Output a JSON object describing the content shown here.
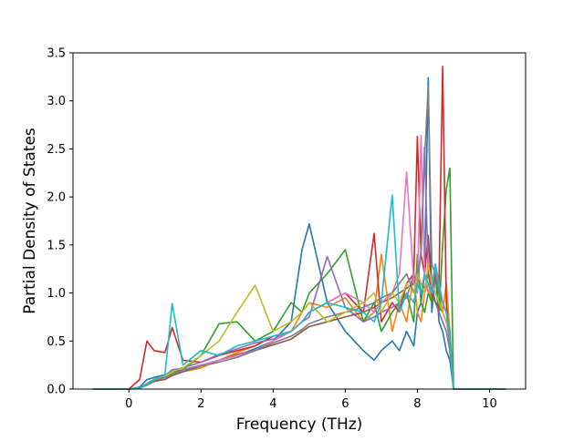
{
  "chart_data": {
    "type": "line",
    "title": "",
    "xlabel": "Frequency (THz)",
    "ylabel": "Partial Density of States",
    "xlim": [
      -1.55,
      11.0
    ],
    "ylim": [
      0.0,
      3.5
    ],
    "xticks": [
      0,
      2,
      4,
      6,
      8,
      10
    ],
    "yticks": [
      0.0,
      0.5,
      1.0,
      1.5,
      2.0,
      2.5,
      3.0,
      3.5
    ],
    "xtick_labels": [
      "0",
      "2",
      "4",
      "6",
      "8",
      "10"
    ],
    "ytick_labels": [
      "0.0",
      "0.5",
      "1.0",
      "1.5",
      "2.0",
      "2.5",
      "3.0",
      "3.5"
    ],
    "grid": false,
    "legend": "none",
    "palette": [
      "#1f77b4",
      "#ff7f0e",
      "#2ca02c",
      "#d62728",
      "#9467bd",
      "#8c564b",
      "#e377c2",
      "#7f7f7f",
      "#bcbd22",
      "#17becf"
    ],
    "x": [
      -1.0,
      -0.5,
      0.0,
      0.3,
      0.5,
      0.7,
      1.0,
      1.2,
      1.5,
      2.0,
      2.5,
      3.0,
      3.5,
      4.0,
      4.5,
      4.8,
      5.0,
      5.5,
      6.0,
      6.5,
      6.8,
      7.0,
      7.3,
      7.5,
      7.7,
      7.9,
      8.0,
      8.1,
      8.2,
      8.3,
      8.4,
      8.5,
      8.6,
      8.7,
      8.8,
      8.9,
      9.0,
      9.5,
      10.0,
      10.45
    ],
    "series": [
      {
        "values": [
          0,
          0,
          0,
          0.02,
          0.1,
          0.12,
          0.15,
          0.18,
          0.2,
          0.25,
          0.3,
          0.35,
          0.42,
          0.5,
          0.7,
          1.45,
          1.72,
          0.9,
          0.6,
          0.4,
          0.3,
          0.4,
          0.5,
          0.4,
          0.6,
          0.45,
          0.8,
          0.9,
          1.2,
          3.24,
          0.8,
          1.2,
          0.7,
          0.6,
          0.4,
          0.3,
          0,
          0,
          0,
          0
        ]
      },
      {
        "values": [
          0,
          0,
          0,
          0.01,
          0.05,
          0.1,
          0.12,
          0.15,
          0.18,
          0.22,
          0.3,
          0.38,
          0.45,
          0.55,
          0.6,
          0.8,
          0.9,
          0.85,
          0.95,
          0.7,
          0.8,
          1.4,
          0.6,
          0.9,
          0.7,
          1.2,
          0.8,
          0.7,
          1.0,
          1.1,
          0.9,
          1.2,
          1.0,
          0.8,
          1.1,
          0.6,
          0,
          0,
          0,
          0
        ]
      },
      {
        "values": [
          0,
          0,
          0,
          0.01,
          0.04,
          0.08,
          0.12,
          0.16,
          0.2,
          0.35,
          0.68,
          0.7,
          0.5,
          0.6,
          0.9,
          0.8,
          1.0,
          1.2,
          1.45,
          0.7,
          0.9,
          0.6,
          0.8,
          0.9,
          1.0,
          0.7,
          1.4,
          0.9,
          0.8,
          1.0,
          0.9,
          1.3,
          0.8,
          1.5,
          2.08,
          2.3,
          0,
          0,
          0,
          0
        ]
      },
      {
        "values": [
          0,
          0,
          0,
          0.1,
          0.5,
          0.4,
          0.38,
          0.64,
          0.3,
          0.28,
          0.35,
          0.4,
          0.45,
          0.55,
          0.6,
          0.7,
          0.8,
          0.9,
          1.0,
          0.8,
          1.62,
          0.7,
          0.9,
          0.8,
          1.1,
          1.2,
          2.63,
          1.4,
          1.2,
          1.6,
          1.0,
          1.2,
          1.1,
          3.36,
          0.9,
          0.4,
          0,
          0,
          0,
          0
        ]
      },
      {
        "values": [
          0,
          0,
          0,
          0.01,
          0.06,
          0.1,
          0.14,
          0.2,
          0.22,
          0.28,
          0.36,
          0.42,
          0.48,
          0.52,
          0.6,
          0.7,
          0.75,
          1.38,
          0.85,
          0.7,
          0.75,
          0.8,
          0.85,
          0.9,
          0.95,
          1.2,
          1.05,
          1.45,
          2.52,
          1.2,
          1.1,
          0.9,
          0.8,
          0.7,
          0.6,
          0.4,
          0,
          0,
          0,
          0
        ]
      },
      {
        "values": [
          0,
          0,
          0,
          0.01,
          0.05,
          0.08,
          0.1,
          0.14,
          0.18,
          0.24,
          0.3,
          0.36,
          0.4,
          0.46,
          0.52,
          0.6,
          0.65,
          0.7,
          0.75,
          0.8,
          0.85,
          0.9,
          0.95,
          1.0,
          1.05,
          1.1,
          1.15,
          1.1,
          1.05,
          1.2,
          1.0,
          0.9,
          0.85,
          0.8,
          0.7,
          0.5,
          0,
          0,
          0,
          0
        ]
      },
      {
        "values": [
          0,
          0,
          0,
          0.01,
          0.06,
          0.1,
          0.12,
          0.15,
          0.2,
          0.25,
          0.3,
          0.35,
          0.4,
          0.5,
          0.6,
          0.7,
          0.8,
          0.9,
          1.0,
          0.9,
          0.8,
          0.9,
          1.0,
          1.2,
          2.26,
          1.1,
          1.0,
          2.64,
          1.2,
          1.0,
          1.1,
          1.3,
          1.0,
          0.9,
          0.8,
          0.6,
          0,
          0,
          0,
          0
        ]
      },
      {
        "values": [
          0,
          0,
          0,
          0.01,
          0.05,
          0.09,
          0.12,
          0.15,
          0.2,
          0.24,
          0.28,
          0.33,
          0.4,
          0.48,
          0.55,
          0.62,
          0.68,
          0.75,
          0.8,
          0.85,
          0.9,
          0.95,
          1.0,
          1.1,
          1.2,
          1.0,
          1.2,
          1.4,
          2.4,
          3.15,
          1.3,
          1.2,
          1.0,
          0.9,
          0.8,
          0.6,
          0,
          0,
          0,
          0
        ]
      },
      {
        "values": [
          0,
          0,
          0,
          0.01,
          0.05,
          0.1,
          0.14,
          0.18,
          0.22,
          0.35,
          0.5,
          0.8,
          1.08,
          0.6,
          0.7,
          0.8,
          0.9,
          0.7,
          0.8,
          0.9,
          1.0,
          0.8,
          1.0,
          0.9,
          1.1,
          1.0,
          1.2,
          1.1,
          1.0,
          1.3,
          1.1,
          1.0,
          0.9,
          0.8,
          0.7,
          0.5,
          0,
          0,
          0,
          0
        ]
      },
      {
        "values": [
          0,
          0,
          0,
          0.01,
          0.05,
          0.1,
          0.15,
          0.89,
          0.25,
          0.4,
          0.35,
          0.45,
          0.5,
          0.55,
          0.6,
          0.7,
          0.8,
          0.9,
          0.85,
          0.8,
          0.7,
          0.9,
          2.02,
          0.8,
          1.0,
          0.9,
          1.1,
          1.0,
          1.2,
          1.1,
          1.0,
          1.3,
          1.1,
          0.9,
          0.8,
          0.5,
          0,
          0,
          0,
          0
        ]
      }
    ]
  }
}
